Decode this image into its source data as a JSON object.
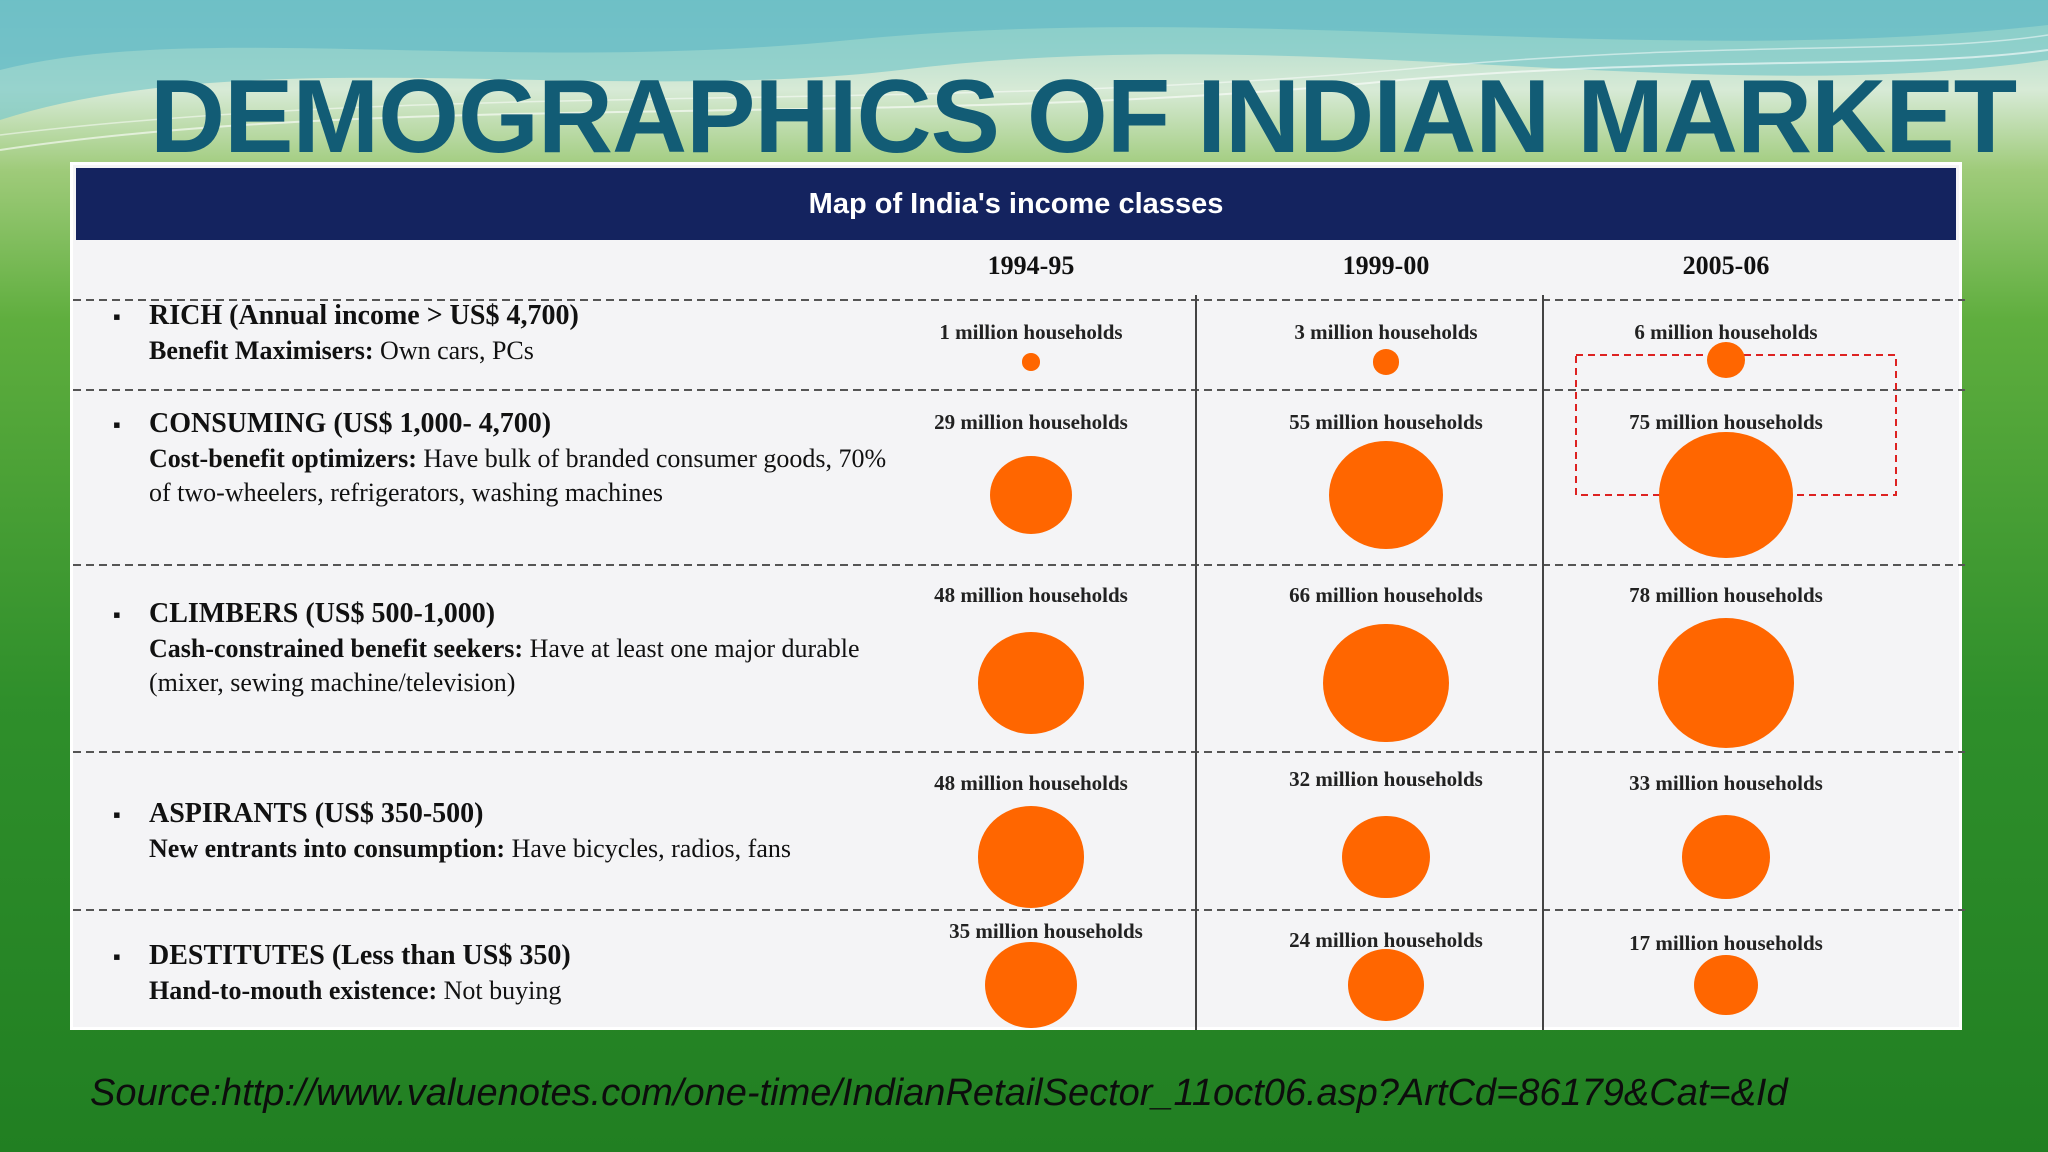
{
  "slide": {
    "title": "DEMOGRAPHICS OF INDIAN MARKET",
    "source": "Source:http://www.valuenotes.com/one-time/IndianRetailSector_11oct06.asp?ArtCd=86179&Cat=&Id"
  },
  "table": {
    "header": "Map of India's income classes",
    "years": [
      "1994-95",
      "1999-00",
      "2005-06"
    ],
    "rows": [
      {
        "title": "RICH (Annual income > US$ 4,700)",
        "desc_bold": "Benefit Maximisers:",
        "desc": " Own cars, PCs",
        "households_millions": [
          1,
          3,
          6
        ],
        "labels": [
          "1 million households",
          "3 million households",
          "6 million households"
        ]
      },
      {
        "title": "CONSUMING (US$ 1,000- 4,700)",
        "desc_bold": "Cost-benefit optimizers:",
        "desc": " Have bulk of branded consumer goods, 70% of two-wheelers, refrigerators, washing machines",
        "households_millions": [
          29,
          55,
          75
        ],
        "labels": [
          "29 million households",
          "55 million households",
          "75 million households"
        ]
      },
      {
        "title": "CLIMBERS (US$ 500-1,000)",
        "desc_bold": "Cash-constrained benefit seekers:",
        "desc": " Have at least one major durable (mixer, sewing machine/television)",
        "households_millions": [
          48,
          66,
          78
        ],
        "labels": [
          "48 million households",
          "66 million households",
          "78 million households"
        ]
      },
      {
        "title": "ASPIRANTS (US$ 350-500)",
        "desc_bold": "New entrants into consumption:",
        "desc": " Have bicycles, radios, fans",
        "households_millions": [
          48,
          32,
          33
        ],
        "labels": [
          "48 million households",
          "32 million households",
          "33 million households"
        ]
      },
      {
        "title": "DESTITUTES (Less than US$ 350)",
        "desc_bold": "Hand-to-mouth existence:",
        "desc": " Not buying",
        "households_millions": [
          35,
          24,
          17
        ],
        "labels": [
          "35 million households",
          "24 million households",
          "17 million households"
        ]
      }
    ],
    "colors": {
      "bubble": "#ff6600",
      "header_bg": "#14235f",
      "title": "#125c75"
    }
  }
}
